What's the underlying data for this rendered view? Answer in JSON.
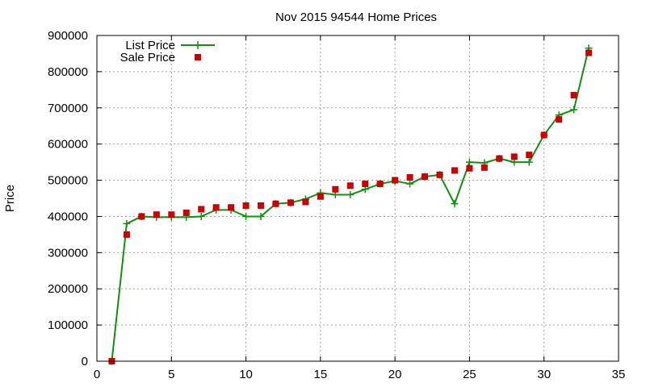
{
  "chart_data": {
    "type": "line",
    "title": "Nov 2015 94544 Home Prices",
    "xlabel": "",
    "ylabel": "Price",
    "xlim": [
      0,
      35
    ],
    "ylim": [
      0,
      900000
    ],
    "xticks": [
      0,
      5,
      10,
      15,
      20,
      25,
      30,
      35
    ],
    "yticks": [
      0,
      100000,
      200000,
      300000,
      400000,
      500000,
      600000,
      700000,
      800000,
      900000
    ],
    "grid": true,
    "legend_position": "top-left",
    "x": [
      1,
      2,
      3,
      4,
      5,
      6,
      7,
      8,
      9,
      10,
      11,
      12,
      13,
      14,
      15,
      16,
      17,
      18,
      19,
      20,
      21,
      22,
      23,
      24,
      25,
      26,
      27,
      28,
      29,
      30,
      31,
      32,
      33
    ],
    "series": [
      {
        "name": "List Price",
        "style": "line-points",
        "marker": "plus",
        "color": "#109010",
        "values": [
          0,
          380000,
          400000,
          398000,
          398000,
          398000,
          400000,
          418000,
          418000,
          400000,
          400000,
          435000,
          438000,
          448000,
          465000,
          460000,
          460000,
          475000,
          490000,
          498000,
          490000,
          510000,
          515000,
          435000,
          550000,
          548000,
          560000,
          550000,
          550000,
          625000,
          680000,
          695000,
          865000
        ]
      },
      {
        "name": "Sale Price",
        "style": "points",
        "marker": "square",
        "color": "#cc0000",
        "values": [
          0,
          350000,
          400000,
          405000,
          405000,
          410000,
          420000,
          425000,
          425000,
          430000,
          430000,
          435000,
          438000,
          440000,
          455000,
          475000,
          485000,
          490000,
          490000,
          500000,
          508000,
          510000,
          515000,
          527000,
          533000,
          535000,
          560000,
          565000,
          570000,
          625000,
          668000,
          735000,
          852000
        ]
      }
    ]
  }
}
